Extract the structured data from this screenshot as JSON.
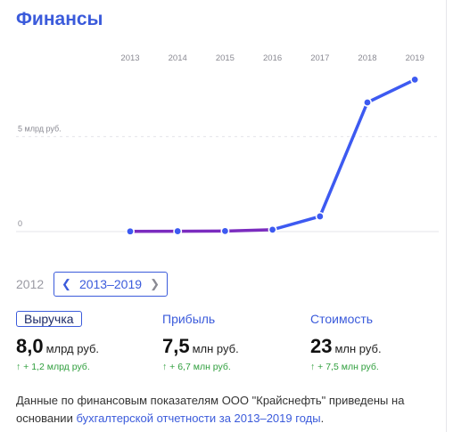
{
  "title": "Финансы",
  "chart_data": {
    "type": "line",
    "categories": [
      "2013",
      "2014",
      "2015",
      "2016",
      "2017",
      "2018",
      "2019"
    ],
    "values": [
      0.01,
      0.02,
      0.03,
      0.1,
      0.8,
      6.8,
      8.0
    ],
    "y_tick_labels": [
      {
        "value": 0,
        "label": "0"
      },
      {
        "value": 5,
        "label": "5 млрд руб."
      }
    ],
    "ylim": [
      0,
      8.3
    ],
    "grid": true,
    "line_color": "#3d5af1",
    "low_color": "#7b2cbf"
  },
  "period": {
    "prev_year": "2012",
    "range": "2013–2019",
    "prev_icon": "chevron-left-icon",
    "next_icon": "chevron-right-icon"
  },
  "metrics": [
    {
      "label": "Выручка",
      "value": "8,0",
      "unit": "млрд руб.",
      "change": "↑ + 1,2 млрд руб."
    },
    {
      "label": "Прибыль",
      "value": "7,5",
      "unit": "млн руб.",
      "change": "↑ + 6,7 млн руб."
    },
    {
      "label": "Стоимость",
      "value": "23",
      "unit": "млн руб.",
      "change": "↑ + 7,5 млн руб."
    }
  ],
  "note": {
    "text": "Данные по финансовым показателям ООО \"Крайснефть\" приведены на основании ",
    "link": "бухгалтерской отчетности за 2013–2019 годы",
    "end": "."
  }
}
